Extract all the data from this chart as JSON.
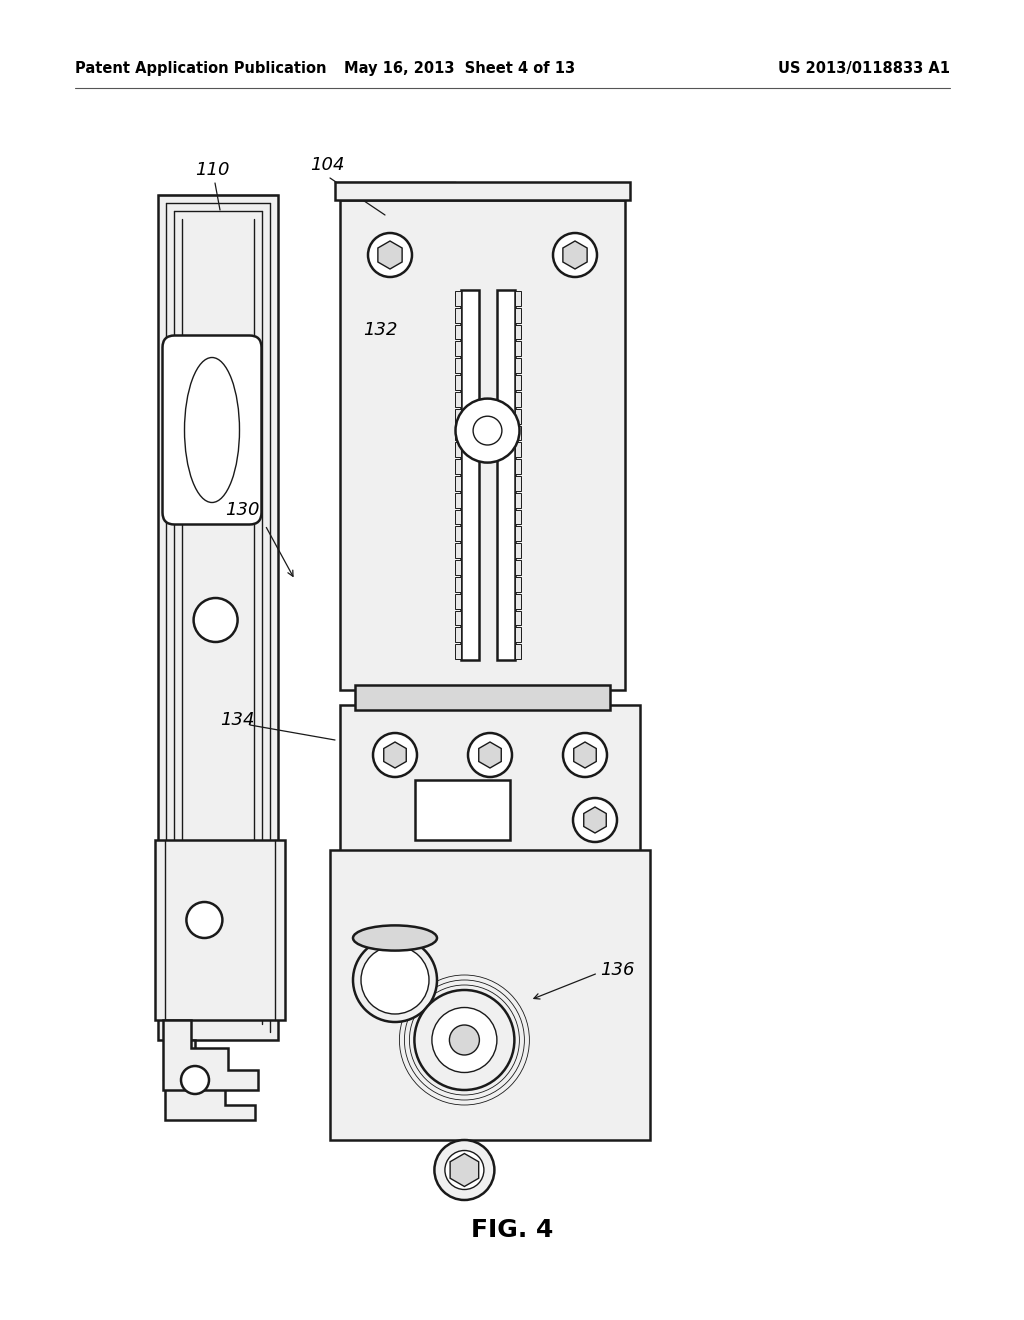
{
  "bg_color": "#ffffff",
  "header_left": "Patent Application Publication",
  "header_center": "May 16, 2013  Sheet 4 of 13",
  "header_right": "US 2013/0118833 A1",
  "fig_label": "FIG. 4",
  "line_color": "#1a1a1a",
  "lw": 1.8,
  "tlw": 1.0
}
